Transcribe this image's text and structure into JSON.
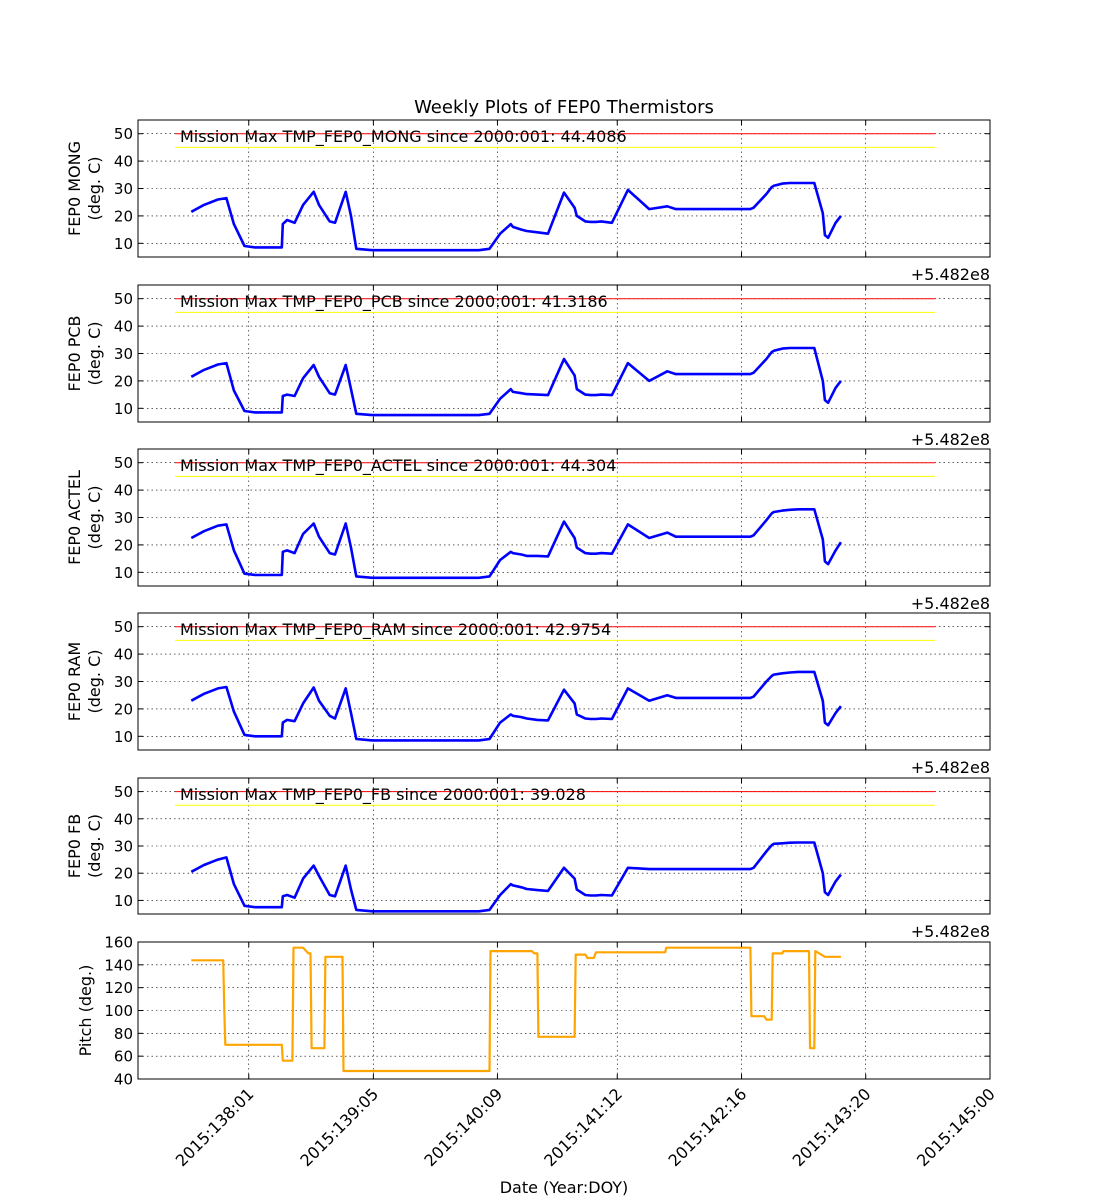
{
  "figure": {
    "title": "Weekly Plots of FEP0 Thermistors",
    "xlabel": "Date (Year:DOY)",
    "offset_label": "+5.482e8",
    "x_ticks": [
      "2015:138:01",
      "2015:139:05",
      "2015:140:09",
      "2015:141:12",
      "2015:142:16",
      "2015:143:20",
      "2015:145:00"
    ]
  },
  "colors": {
    "series": "#0000ff",
    "pitch": "#ffa500",
    "red_limit": "#ff0000",
    "yellow_limit": "#ffff00",
    "grid": "#000000"
  },
  "chart_data": [
    {
      "type": "line",
      "ylabel_line1": "FEP0 MONG",
      "ylabel_line2": "(deg. C)",
      "annotation": "Mission Max TMP_FEP0_MONG since 2000:001: 44.4086",
      "ylim": [
        5,
        55
      ],
      "yticks": [
        10,
        20,
        30,
        40,
        50
      ],
      "red_limit": 50,
      "yellow_limit": 45,
      "x": [
        137.5,
        137.62,
        137.75,
        137.83,
        137.9,
        138.0,
        138.1,
        138.25,
        138.35,
        138.36,
        138.4,
        138.47,
        138.55,
        138.65,
        138.7,
        138.8,
        138.85,
        138.95,
        139.0,
        139.05,
        139.2,
        139.6,
        140.0,
        140.2,
        140.3,
        140.4,
        140.5,
        140.52,
        140.6,
        140.65,
        140.75,
        140.85,
        141.0,
        141.1,
        141.12,
        141.2,
        141.25,
        141.3,
        141.35,
        141.45,
        141.6,
        141.8,
        141.97,
        142.05,
        142.2,
        142.5,
        142.75,
        142.78,
        142.9,
        142.95,
        142.97,
        143.05,
        143.12,
        143.2,
        143.32,
        143.35,
        143.43,
        143.45,
        143.48,
        143.55,
        143.6
      ],
      "values": [
        21.5,
        24,
        26,
        26.5,
        17,
        9,
        8.5,
        8.5,
        8.5,
        17,
        18.5,
        17.5,
        24,
        28.8,
        24,
        18,
        17.5,
        28.8,
        20,
        8,
        7.5,
        7.5,
        7.5,
        7.5,
        8,
        13.5,
        17,
        16,
        15,
        14.5,
        14,
        13.5,
        28.5,
        23,
        20,
        18,
        17.8,
        17.8,
        18,
        17.5,
        29.5,
        22.5,
        23.5,
        22.5,
        22.5,
        22.5,
        22.5,
        23,
        28,
        30.5,
        31,
        31.8,
        32,
        32,
        32,
        32,
        21,
        13,
        12,
        17.5,
        20
      ]
    },
    {
      "type": "line",
      "ylabel_line1": "FEP0 PCB",
      "ylabel_line2": "(deg. C)",
      "annotation": "Mission Max TMP_FEP0_PCB since 2000:001: 41.3186",
      "ylim": [
        5,
        55
      ],
      "yticks": [
        10,
        20,
        30,
        40,
        50
      ],
      "red_limit": 50,
      "yellow_limit": 45,
      "x": [
        137.5,
        137.62,
        137.75,
        137.83,
        137.9,
        138.0,
        138.1,
        138.25,
        138.35,
        138.36,
        138.4,
        138.47,
        138.55,
        138.65,
        138.7,
        138.8,
        138.85,
        138.95,
        139.0,
        139.05,
        139.2,
        139.6,
        140.0,
        140.2,
        140.3,
        140.4,
        140.5,
        140.52,
        140.6,
        140.65,
        140.75,
        140.85,
        141.0,
        141.1,
        141.12,
        141.2,
        141.25,
        141.3,
        141.35,
        141.45,
        141.6,
        141.8,
        141.97,
        142.05,
        142.2,
        142.5,
        142.75,
        142.78,
        142.9,
        142.95,
        142.97,
        143.05,
        143.12,
        143.2,
        143.32,
        143.35,
        143.43,
        143.45,
        143.48,
        143.55,
        143.6
      ],
      "values": [
        21.5,
        24,
        26,
        26.5,
        16.5,
        9,
        8.5,
        8.5,
        8.5,
        14.5,
        15,
        14.5,
        21,
        25.8,
        21.5,
        15.5,
        15,
        25.8,
        17,
        8,
        7.5,
        7.5,
        7.5,
        7.5,
        8,
        13.5,
        17,
        16,
        15.5,
        15.2,
        15,
        14.8,
        28,
        22,
        17,
        15,
        14.8,
        14.8,
        15,
        14.8,
        26.5,
        20,
        23.5,
        22.5,
        22.5,
        22.5,
        22.5,
        23,
        28,
        30.5,
        31,
        31.8,
        32,
        32,
        32,
        32,
        20,
        13,
        12,
        17.5,
        20
      ]
    },
    {
      "type": "line",
      "ylabel_line1": "FEP0 ACTEL",
      "ylabel_line2": "(deg. C)",
      "annotation": "Mission Max TMP_FEP0_ACTEL since 2000:001: 44.304",
      "ylim": [
        5,
        55
      ],
      "yticks": [
        10,
        20,
        30,
        40,
        50
      ],
      "red_limit": 50,
      "yellow_limit": 45,
      "x": [
        137.5,
        137.62,
        137.75,
        137.83,
        137.9,
        138.0,
        138.1,
        138.25,
        138.35,
        138.36,
        138.4,
        138.47,
        138.55,
        138.65,
        138.7,
        138.8,
        138.85,
        138.95,
        139.0,
        139.05,
        139.2,
        139.6,
        140.0,
        140.2,
        140.3,
        140.4,
        140.5,
        140.52,
        140.6,
        140.65,
        140.75,
        140.85,
        141.0,
        141.1,
        141.12,
        141.2,
        141.25,
        141.3,
        141.35,
        141.45,
        141.6,
        141.8,
        141.97,
        142.05,
        142.2,
        142.5,
        142.75,
        142.78,
        142.9,
        142.95,
        142.97,
        143.05,
        143.12,
        143.2,
        143.32,
        143.35,
        143.43,
        143.45,
        143.48,
        143.55,
        143.6
      ],
      "values": [
        22.5,
        25,
        27,
        27.5,
        18,
        9.5,
        9,
        9,
        9,
        17.5,
        18,
        17,
        24,
        27.8,
        23,
        17,
        16.5,
        27.8,
        19,
        8.5,
        8,
        8,
        8,
        8,
        8.5,
        14.5,
        17.5,
        17,
        16.5,
        16,
        16,
        15.8,
        28.5,
        22.5,
        19,
        17,
        16.8,
        16.8,
        17,
        16.8,
        27.5,
        22.5,
        24.5,
        23,
        23,
        23,
        23,
        23.5,
        29,
        31.5,
        32,
        32.5,
        32.8,
        33,
        33,
        33,
        22,
        14,
        13,
        18,
        21
      ]
    },
    {
      "type": "line",
      "ylabel_line1": "FEP0 RAM",
      "ylabel_line2": "(deg. C)",
      "annotation": "Mission Max TMP_FEP0_RAM since 2000:001: 42.9754",
      "ylim": [
        5,
        55
      ],
      "yticks": [
        10,
        20,
        30,
        40,
        50
      ],
      "red_limit": 50,
      "yellow_limit": 45,
      "x": [
        137.5,
        137.62,
        137.75,
        137.83,
        137.9,
        138.0,
        138.1,
        138.25,
        138.35,
        138.36,
        138.4,
        138.47,
        138.55,
        138.65,
        138.7,
        138.8,
        138.85,
        138.95,
        139.0,
        139.05,
        139.2,
        139.6,
        140.0,
        140.2,
        140.3,
        140.4,
        140.5,
        140.52,
        140.6,
        140.65,
        140.75,
        140.85,
        141.0,
        141.1,
        141.12,
        141.2,
        141.25,
        141.3,
        141.35,
        141.45,
        141.6,
        141.8,
        141.97,
        142.05,
        142.2,
        142.5,
        142.75,
        142.78,
        142.9,
        142.95,
        142.97,
        143.05,
        143.12,
        143.2,
        143.32,
        143.35,
        143.43,
        143.45,
        143.48,
        143.55,
        143.6
      ],
      "values": [
        23,
        25.5,
        27.5,
        28,
        19,
        10.5,
        10,
        10,
        10,
        15,
        16,
        15.5,
        22,
        27.8,
        23,
        17.5,
        16.5,
        27.5,
        18.5,
        9,
        8.5,
        8.5,
        8.5,
        8.5,
        9,
        15,
        18,
        17.5,
        17,
        16.5,
        16,
        15.8,
        27,
        22,
        18,
        16.5,
        16.3,
        16.3,
        16.5,
        16.3,
        27.5,
        23,
        25,
        24,
        24,
        24,
        24,
        24.5,
        30,
        32,
        32.5,
        33,
        33.3,
        33.5,
        33.5,
        33.5,
        23,
        15,
        14,
        18.5,
        21
      ]
    },
    {
      "type": "line",
      "ylabel_line1": "FEP0 FB",
      "ylabel_line2": "(deg. C)",
      "annotation": "Mission Max TMP_FEP0_FB since 2000:001: 39.028",
      "ylim": [
        5,
        55
      ],
      "yticks": [
        10,
        20,
        30,
        40,
        50
      ],
      "red_limit": 50,
      "yellow_limit": 45,
      "x": [
        137.5,
        137.62,
        137.75,
        137.83,
        137.9,
        138.0,
        138.1,
        138.25,
        138.35,
        138.36,
        138.4,
        138.47,
        138.55,
        138.65,
        138.7,
        138.8,
        138.85,
        138.95,
        139.0,
        139.05,
        139.2,
        139.6,
        140.0,
        140.2,
        140.3,
        140.4,
        140.5,
        140.52,
        140.6,
        140.65,
        140.75,
        140.85,
        141.0,
        141.1,
        141.12,
        141.2,
        141.25,
        141.3,
        141.35,
        141.45,
        141.6,
        141.8,
        141.97,
        142.05,
        142.2,
        142.5,
        142.75,
        142.78,
        142.9,
        142.95,
        142.97,
        143.05,
        143.12,
        143.2,
        143.32,
        143.35,
        143.43,
        143.45,
        143.48,
        143.55,
        143.6
      ],
      "values": [
        20.5,
        23,
        25,
        25.8,
        16,
        8,
        7.5,
        7.5,
        7.5,
        11.5,
        12,
        11,
        18,
        22.8,
        19,
        12,
        11.5,
        22.8,
        14,
        6.5,
        6,
        6,
        6,
        6,
        6.5,
        12,
        16,
        15.5,
        14.8,
        14.2,
        13.8,
        13.5,
        22,
        18,
        14,
        12,
        11.8,
        11.8,
        12,
        11.8,
        22,
        21.5,
        21.5,
        21.5,
        21.5,
        21.5,
        21.5,
        22,
        28,
        30.3,
        30.8,
        31,
        31.2,
        31.3,
        31.3,
        31.3,
        20,
        13,
        12,
        17,
        19.5
      ]
    },
    {
      "type": "line",
      "ylabel_line1": "Pitch (deg.)",
      "ylabel_line2": "",
      "annotation": "",
      "ylim": [
        40,
        160
      ],
      "yticks": [
        40,
        60,
        80,
        100,
        120,
        140,
        160
      ],
      "x": [
        137.5,
        137.8,
        137.81,
        137.82,
        138.35,
        138.36,
        138.45,
        138.46,
        138.55,
        138.6,
        138.62,
        138.63,
        138.75,
        138.76,
        138.85,
        138.92,
        138.93,
        139.0,
        140.3,
        140.31,
        140.7,
        140.72,
        140.75,
        140.76,
        141.1,
        141.11,
        141.2,
        141.22,
        141.28,
        141.3,
        141.95,
        141.96,
        142.75,
        142.76,
        142.88,
        142.9,
        142.95,
        142.96,
        143.05,
        143.06,
        143.3,
        143.31,
        143.35,
        143.36,
        143.45,
        143.6
      ],
      "values": [
        144,
        144,
        100,
        70,
        70,
        56,
        56,
        155,
        155,
        150,
        150,
        67,
        67,
        147,
        147,
        147,
        47,
        47,
        47,
        152,
        152,
        150,
        150,
        77,
        77,
        149,
        149,
        146,
        146,
        151,
        151,
        155,
        155,
        95,
        95,
        92,
        92,
        150,
        150,
        152,
        152,
        67,
        67,
        152,
        147,
        147
      ]
    }
  ]
}
